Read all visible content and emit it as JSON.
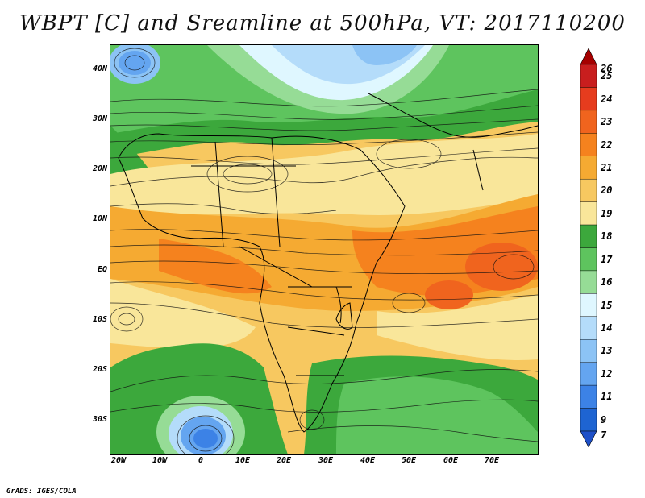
{
  "title": "WBPT [C] and Sreamline at 500hPa, VT: 2017110200",
  "map": {
    "lat_labels": [
      "40N",
      "30N",
      "20N",
      "10N",
      "EQ",
      "10S",
      "20S",
      "30S"
    ],
    "lon_labels": [
      "20W",
      "10W",
      "0",
      "10E",
      "20E",
      "30E",
      "40E",
      "50E",
      "60E",
      "70E"
    ]
  },
  "colorbar": {
    "labels": [
      "26",
      "25",
      "24",
      "23",
      "22",
      "21",
      "20",
      "19",
      "18",
      "17",
      "16",
      "15",
      "14",
      "13",
      "12",
      "11",
      "9",
      "7"
    ],
    "colors": [
      "#a50000",
      "#c81e1e",
      "#e63c1e",
      "#f0641e",
      "#f5821e",
      "#f5aa32",
      "#f7c860",
      "#f9e69a",
      "#3ca83c",
      "#5ec45e",
      "#96dc96",
      "#dff7ff",
      "#b4dcfa",
      "#8cc3f5",
      "#64a5f0",
      "#3c82e6",
      "#1e64d2",
      "#1e50c8"
    ]
  },
  "footer": {
    "credit": "GrADS: IGES/COLA"
  }
}
